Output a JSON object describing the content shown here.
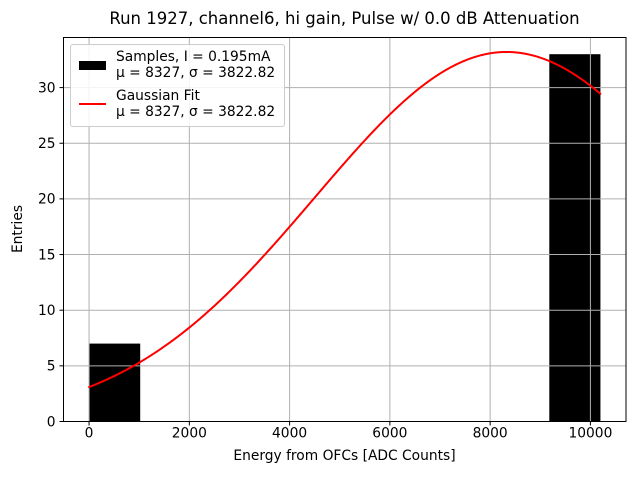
{
  "title": "Run 1927, channel6, hi gain, Pulse w/ 0.0 dB Attenuation",
  "axes": {
    "xlabel": "Energy from OFCs [ADC Counts]",
    "ylabel": "Entries"
  },
  "legend": {
    "position": "upper-left",
    "entries": [
      {
        "handle": "black-patch",
        "lines": [
          "Samples, I = 0.195mA",
          "μ = 8327, σ = 3822.82"
        ]
      },
      {
        "handle": "red-line",
        "lines": [
          "Gaussian Fit",
          "μ = 8327, σ = 3822.82"
        ]
      }
    ]
  },
  "chart_data": {
    "type": "bar",
    "subtype": "histogram-with-gaussian-fit",
    "title": "Run 1927, channel6, hi gain, Pulse w/ 0.0 dB Attenuation",
    "xlabel": "Energy from OFCs [ADC Counts]",
    "ylabel": "Entries",
    "xlim": [
      -510,
      10710
    ],
    "ylim": [
      0,
      34.5
    ],
    "xticks": [
      0,
      2000,
      4000,
      6000,
      8000,
      10000
    ],
    "yticks": [
      0,
      5,
      10,
      15,
      20,
      25,
      30
    ],
    "grid": true,
    "grid_above_bars": true,
    "colors": {
      "bars": "#000000",
      "fit": "#ff0000",
      "grid": "#b0b0b0",
      "spine": "#000000"
    },
    "bars": [
      {
        "x0": 0,
        "x1": 1020,
        "count": 7
      },
      {
        "x0": 9180,
        "x1": 10200,
        "count": 33
      }
    ],
    "bar_counts": [
      7,
      33
    ],
    "fit_curve": {
      "shape": "gaussian",
      "mu": 8327,
      "sigma": 3822.82,
      "amplitude": 33.2,
      "x_start": 0,
      "x_end": 10200
    }
  }
}
